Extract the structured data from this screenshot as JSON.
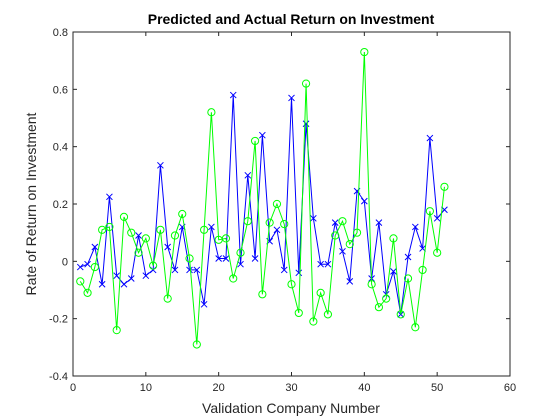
{
  "chart_data": {
    "type": "line",
    "title": "Predicted and Actual Return on Investment",
    "xlabel": "Validation Company Number",
    "ylabel": "Rate of Return on Investment",
    "xlim": [
      0,
      60
    ],
    "ylim": [
      -0.4,
      0.8
    ],
    "xticks": [
      0,
      10,
      20,
      30,
      40,
      50,
      60
    ],
    "yticks": [
      -0.4,
      -0.2,
      0,
      0.2,
      0.4,
      0.6,
      0.8
    ],
    "x": [
      1,
      2,
      3,
      4,
      5,
      6,
      7,
      8,
      9,
      10,
      11,
      12,
      13,
      14,
      15,
      16,
      17,
      18,
      19,
      20,
      21,
      22,
      23,
      24,
      25,
      26,
      27,
      28,
      29,
      30,
      31,
      32,
      33,
      34,
      35,
      36,
      37,
      38,
      39,
      40,
      41,
      42,
      43,
      44,
      45,
      46,
      47,
      48,
      49,
      50,
      51
    ],
    "series": [
      {
        "color": "#0000ff",
        "marker": "x",
        "values": [
          -0.02,
          -0.01,
          0.05,
          -0.08,
          0.225,
          -0.05,
          -0.08,
          -0.06,
          0.09,
          -0.05,
          -0.03,
          0.335,
          0.05,
          -0.03,
          0.12,
          -0.03,
          -0.03,
          -0.15,
          0.12,
          0.01,
          0.01,
          0.58,
          -0.01,
          0.3,
          0.01,
          0.44,
          0.07,
          0.11,
          -0.03,
          0.57,
          -0.04,
          0.48,
          0.15,
          -0.01,
          -0.01,
          0.135,
          0.035,
          -0.07,
          0.245,
          0.21,
          -0.06,
          0.135,
          -0.115,
          -0.035,
          -0.185,
          0.015,
          0.12,
          0.045,
          0.43,
          0.15,
          0.18
        ]
      },
      {
        "color": "#00ff00",
        "marker": "o",
        "values": [
          -0.07,
          -0.11,
          -0.02,
          0.11,
          0.12,
          -0.24,
          0.155,
          0.1,
          0.03,
          0.08,
          -0.015,
          0.11,
          -0.13,
          0.09,
          0.165,
          0.01,
          -0.29,
          0.11,
          0.52,
          0.075,
          0.08,
          -0.06,
          0.03,
          0.14,
          0.42,
          -0.115,
          0.135,
          0.2,
          0.13,
          -0.08,
          -0.18,
          0.62,
          -0.21,
          -0.11,
          -0.185,
          0.09,
          0.14,
          0.06,
          0.1,
          0.73,
          -0.08,
          -0.16,
          -0.13,
          0.08,
          -0.185,
          -0.06,
          -0.23,
          -0.03,
          0.175,
          0.03,
          0.26
        ]
      }
    ]
  }
}
